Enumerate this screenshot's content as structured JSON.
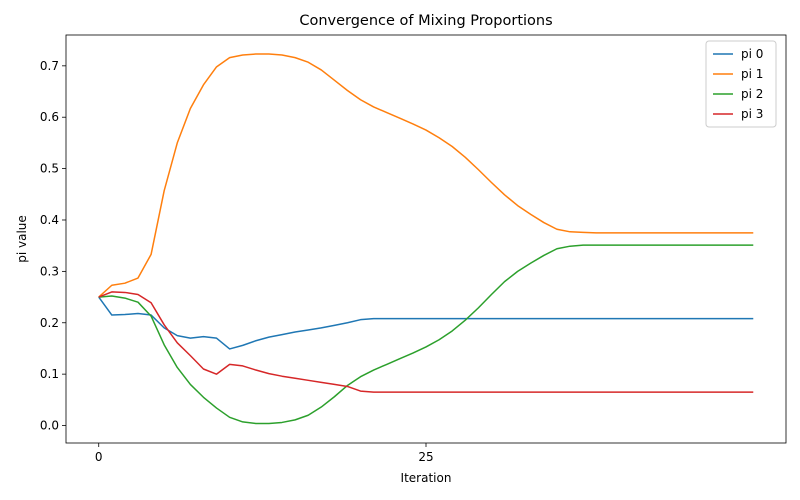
{
  "chart_data": {
    "type": "line",
    "title": "Convergence of Mixing Proportions",
    "xlabel": "Iteration",
    "ylabel": "pi value",
    "xlim": [
      -2.5,
      52.5
    ],
    "ylim": [
      -0.034,
      0.76
    ],
    "xticks": [
      0,
      25
    ],
    "yticks": [
      0.0,
      0.1,
      0.2,
      0.3,
      0.4,
      0.5,
      0.6,
      0.7
    ],
    "grid": false,
    "legend_position": "top-right",
    "x": [
      0,
      1,
      2,
      3,
      4,
      5,
      6,
      7,
      8,
      9,
      10,
      11,
      12,
      13,
      14,
      15,
      16,
      17,
      18,
      19,
      20,
      21,
      22,
      23,
      24,
      25,
      26,
      27,
      28,
      29,
      30,
      31,
      32,
      33,
      34,
      35,
      36,
      37,
      38,
      39,
      40,
      41,
      42,
      43,
      44,
      45,
      46,
      47,
      48,
      49,
      50
    ],
    "series": [
      {
        "name": "pi 0",
        "color": "#1f77b4",
        "values": [
          0.25,
          0.215,
          0.216,
          0.218,
          0.215,
          0.19,
          0.175,
          0.17,
          0.173,
          0.17,
          0.149,
          0.156,
          0.165,
          0.172,
          0.177,
          0.182,
          0.186,
          0.19,
          0.195,
          0.2,
          0.206,
          0.208,
          0.208,
          0.208,
          0.208,
          0.208,
          0.208,
          0.208,
          0.208,
          0.208,
          0.208,
          0.208,
          0.208,
          0.208,
          0.208,
          0.208,
          0.208,
          0.208,
          0.208,
          0.208,
          0.208,
          0.208,
          0.208,
          0.208,
          0.208,
          0.208,
          0.208,
          0.208,
          0.208,
          0.208,
          0.208
        ]
      },
      {
        "name": "pi 1",
        "color": "#ff7f0e",
        "values": [
          0.25,
          0.273,
          0.277,
          0.287,
          0.333,
          0.457,
          0.55,
          0.617,
          0.663,
          0.698,
          0.716,
          0.721,
          0.723,
          0.723,
          0.721,
          0.716,
          0.707,
          0.692,
          0.672,
          0.652,
          0.634,
          0.62,
          0.609,
          0.598,
          0.587,
          0.575,
          0.56,
          0.543,
          0.522,
          0.498,
          0.473,
          0.449,
          0.428,
          0.411,
          0.395,
          0.382,
          0.377,
          0.376,
          0.375,
          0.375,
          0.375,
          0.375,
          0.375,
          0.375,
          0.375,
          0.375,
          0.375,
          0.375,
          0.375,
          0.375,
          0.375
        ]
      },
      {
        "name": "pi 2",
        "color": "#2ca02c",
        "values": [
          0.25,
          0.252,
          0.248,
          0.24,
          0.213,
          0.157,
          0.113,
          0.08,
          0.055,
          0.034,
          0.016,
          0.007,
          0.004,
          0.004,
          0.006,
          0.011,
          0.02,
          0.036,
          0.056,
          0.078,
          0.095,
          0.108,
          0.119,
          0.13,
          0.141,
          0.153,
          0.167,
          0.184,
          0.205,
          0.229,
          0.255,
          0.28,
          0.3,
          0.316,
          0.331,
          0.344,
          0.349,
          0.351,
          0.351,
          0.351,
          0.351,
          0.351,
          0.351,
          0.351,
          0.351,
          0.351,
          0.351,
          0.351,
          0.351,
          0.351,
          0.351
        ]
      },
      {
        "name": "pi 3",
        "color": "#d62728",
        "values": [
          0.25,
          0.26,
          0.259,
          0.255,
          0.239,
          0.196,
          0.161,
          0.136,
          0.11,
          0.1,
          0.119,
          0.116,
          0.108,
          0.101,
          0.096,
          0.092,
          0.088,
          0.084,
          0.08,
          0.076,
          0.067,
          0.065,
          0.065,
          0.065,
          0.065,
          0.065,
          0.065,
          0.065,
          0.065,
          0.065,
          0.065,
          0.065,
          0.065,
          0.065,
          0.065,
          0.065,
          0.065,
          0.065,
          0.065,
          0.065,
          0.065,
          0.065,
          0.065,
          0.065,
          0.065,
          0.065,
          0.065,
          0.065,
          0.065,
          0.065,
          0.065
        ]
      }
    ]
  }
}
